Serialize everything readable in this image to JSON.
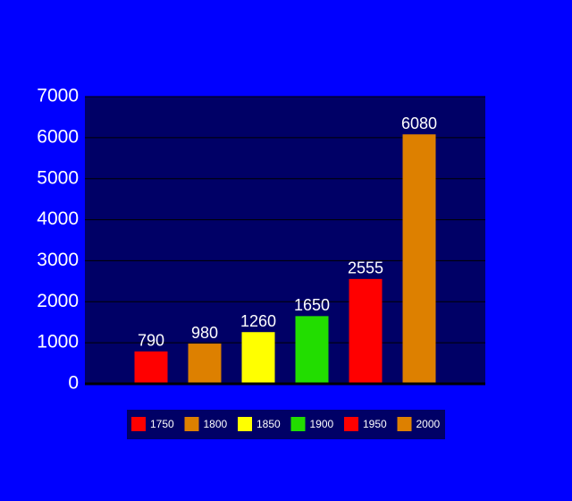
{
  "chart_data": {
    "type": "bar",
    "categories": [
      "1750",
      "1800",
      "1850",
      "1900",
      "1950",
      "2000"
    ],
    "values": [
      790,
      980,
      1260,
      1650,
      2555,
      6080
    ],
    "colors": [
      "#ff0000",
      "#dd8000",
      "#ffff00",
      "#22dd00",
      "#ff0000",
      "#dd8000"
    ],
    "ylim": [
      0,
      7000
    ],
    "yticks": [
      0,
      1000,
      2000,
      3000,
      4000,
      5000,
      6000,
      7000
    ],
    "grid": true,
    "legend": "bottom"
  }
}
